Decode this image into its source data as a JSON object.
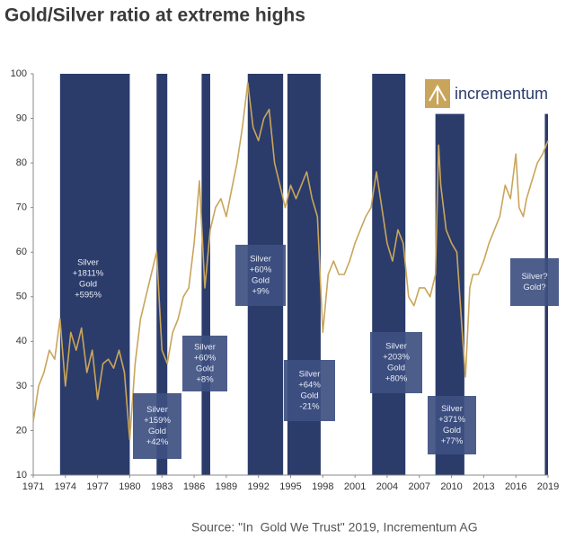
{
  "chart_data": {
    "type": "line",
    "title": "Gold/Silver ratio at extreme highs",
    "source": "Source: \"In  Gold We Trust\" 2019, Incrementum AG",
    "logo_text": "incrementum",
    "color": "#c9a55b",
    "band_color": "#2b3c6b",
    "box_color": "#3e5081",
    "xlim": [
      1971,
      2019
    ],
    "xticks": [
      1971,
      1974,
      1977,
      1980,
      1983,
      1986,
      1989,
      1992,
      1995,
      1998,
      2001,
      2004,
      2007,
      2010,
      2013,
      2016,
      2019
    ],
    "ylim": [
      10,
      100
    ],
    "yticks": [
      10,
      20,
      30,
      40,
      50,
      60,
      70,
      80,
      90,
      100
    ],
    "x": [
      1971,
      1971.5,
      1972,
      1972.5,
      1973,
      1973.5,
      1974,
      1974.5,
      1975,
      1975.5,
      1976,
      1976.5,
      1977,
      1977.5,
      1978,
      1978.5,
      1979,
      1979.5,
      1980,
      1980.5,
      1981,
      1981.5,
      1982,
      1982.5,
      1983,
      1983.5,
      1984,
      1984.5,
      1985,
      1985.5,
      1986,
      1986.5,
      1987,
      1987.5,
      1988,
      1988.5,
      1989,
      1989.5,
      1990,
      1990.5,
      1991,
      1991.5,
      1992,
      1992.5,
      1993,
      1993.5,
      1994,
      1994.5,
      1995,
      1995.5,
      1996,
      1996.5,
      1997,
      1997.5,
      1998,
      1998.5,
      1999,
      1999.5,
      2000,
      2000.5,
      2001,
      2001.5,
      2002,
      2002.5,
      2003,
      2003.5,
      2004,
      2004.5,
      2005,
      2005.5,
      2006,
      2006.5,
      2007,
      2007.5,
      2008,
      2008.5,
      2008.8,
      2009,
      2009.5,
      2010,
      2010.5,
      2011,
      2011.3,
      2011.7,
      2012,
      2012.5,
      2013,
      2013.5,
      2014,
      2014.5,
      2015,
      2015.5,
      2016,
      2016.3,
      2016.7,
      2017,
      2017.5,
      2018,
      2018.5,
      2019
    ],
    "values": [
      22,
      30,
      33,
      38,
      36,
      45,
      30,
      42,
      38,
      43,
      33,
      38,
      27,
      35,
      36,
      34,
      38,
      33,
      18,
      35,
      45,
      50,
      55,
      60,
      38,
      35,
      42,
      45,
      50,
      52,
      62,
      76,
      52,
      65,
      70,
      72,
      68,
      74,
      80,
      88,
      98,
      88,
      85,
      90,
      92,
      80,
      75,
      70,
      75,
      72,
      75,
      78,
      72,
      68,
      42,
      55,
      58,
      55,
      55,
      58,
      62,
      65,
      68,
      70,
      78,
      70,
      62,
      58,
      65,
      62,
      50,
      48,
      52,
      52,
      50,
      55,
      84,
      75,
      65,
      62,
      60,
      42,
      32,
      52,
      55,
      55,
      58,
      62,
      65,
      68,
      75,
      72,
      82,
      70,
      68,
      72,
      76,
      80,
      82,
      85
    ],
    "bands": [
      {
        "start": 1973.5,
        "end": 1980,
        "top": 100
      },
      {
        "start": 1982.5,
        "end": 1983.5,
        "top": 100
      },
      {
        "start": 1986.7,
        "end": 1987.5,
        "top": 100
      },
      {
        "start": 1991,
        "end": 1994.3,
        "top": 100
      },
      {
        "start": 1994.7,
        "end": 1997.8,
        "top": 100
      },
      {
        "start": 2002.6,
        "end": 2005.7,
        "top": 100
      },
      {
        "start": 2008.5,
        "end": 2011.2,
        "top": 91
      },
      {
        "start": 2018.7,
        "end": 2019,
        "top": 91
      }
    ],
    "annotations": [
      {
        "lines": [
          "Silver",
          "+1811%",
          "Gold",
          "+595%"
        ]
      },
      {
        "lines": [
          "Silver",
          "+159%",
          "Gold",
          "+42%"
        ]
      },
      {
        "lines": [
          "Silver",
          "+60%",
          "Gold",
          "+8%"
        ]
      },
      {
        "lines": [
          "Silver",
          "+60%",
          "Gold",
          "+9%"
        ]
      },
      {
        "lines": [
          "Silver",
          "+64%",
          "Gold",
          "-21%"
        ]
      },
      {
        "lines": [
          "Silver",
          "+203%",
          "Gold",
          "+80%"
        ]
      },
      {
        "lines": [
          "Silver",
          "+371%",
          "Gold",
          "+77%"
        ]
      },
      {
        "lines": [
          "Silver?",
          "Gold?"
        ]
      }
    ]
  }
}
